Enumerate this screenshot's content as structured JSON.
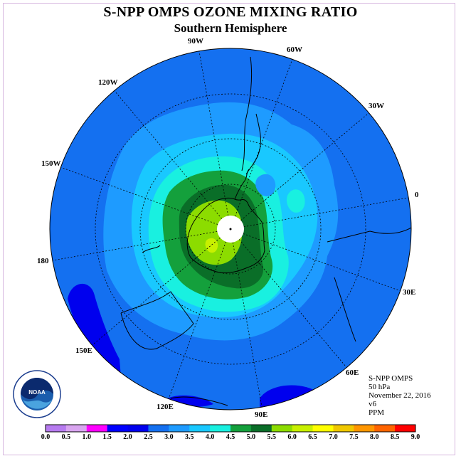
{
  "title": "S-NPP OMPS OZONE MIXING RATIO",
  "subtitle": "Southern Hemisphere",
  "longitude_labels": [
    "90W",
    "60W",
    "30W",
    "0",
    "30E",
    "60E",
    "90E",
    "120E",
    "150E",
    "180",
    "150W",
    "120W"
  ],
  "info": {
    "instrument": "S-NPP OMPS",
    "pressure": "50 hPa",
    "date": "November 22, 2016",
    "version": "v6",
    "units": "PPM"
  },
  "logo": {
    "text": "NOAA",
    "ring_text": "NATIONAL OCEANIC AND ATMOSPHERIC ADMINISTRATION · U.S. DEPARTMENT OF COMMERCE"
  },
  "colorbar": {
    "labels": [
      "0.0",
      "0.5",
      "1.0",
      "1.5",
      "2.0",
      "2.5",
      "3.0",
      "3.5",
      "4.0",
      "4.5",
      "5.0",
      "5.5",
      "6.0",
      "6.5",
      "7.0",
      "7.5",
      "8.0",
      "8.5",
      "9.0"
    ],
    "colors": [
      "#b77bf0",
      "#d9a5f0",
      "#ff00ff",
      "#0000ff",
      "#0000ee",
      "#1470f0",
      "#1e9bff",
      "#19c8ff",
      "#19f0e0",
      "#14a03c",
      "#0a6e28",
      "#8cdc00",
      "#c8f000",
      "#ffff00",
      "#f0c800",
      "#ff9600",
      "#ff6400",
      "#ff0000",
      "#8b5a3c"
    ]
  },
  "colors": {
    "level_2_0": "#0000ee",
    "level_2_5": "#1470f0",
    "level_3_0": "#1e9bff",
    "level_3_5": "#19c8ff",
    "level_4_0": "#19f0e0",
    "level_4_5": "#14a03c",
    "level_5_0": "#0a6e28",
    "level_5_5": "#8cdc00",
    "level_6_0": "#c8f000",
    "pole_mask": "#ffffff"
  }
}
